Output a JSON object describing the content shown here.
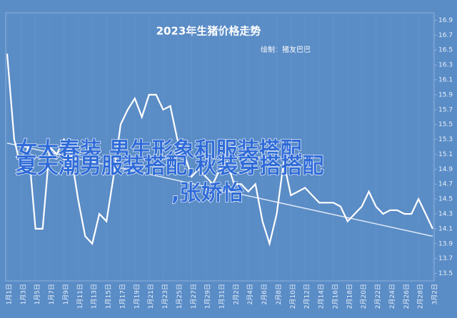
{
  "chart_data": {
    "type": "line",
    "title": "2023年生猪价格走势",
    "subtitle": "绘制：猪友巴巴",
    "categories": [
      "1月1日",
      null,
      "1月3日",
      null,
      "1月5日",
      null,
      "1月7日",
      null,
      "1月9日",
      null,
      "1月11日",
      null,
      "1月13日",
      null,
      "1月15日",
      null,
      "1月17日",
      null,
      "1月19日",
      null,
      "1月21日",
      null,
      "1月23日",
      null,
      "1月25日",
      null,
      "1月27日",
      null,
      "1月29日",
      null,
      "1月31日",
      null,
      "2月2日",
      null,
      "2月4日",
      null,
      "2月6日",
      null,
      "2月8日",
      null,
      "2月10日",
      null,
      "2月12日",
      null,
      "2月14日",
      null,
      "2月16日",
      null,
      "2月18日",
      null,
      "2月20日",
      null,
      "2月22日",
      null,
      "2月24日",
      null,
      "2月26日",
      null,
      "2月28日",
      null,
      "3月2日"
    ],
    "series": [
      {
        "color": "#ffffff",
        "values": [
          16.45,
          15.3,
          14.9,
          15.2,
          14.1,
          14.1,
          15.2,
          15.1,
          15.3,
          15.1,
          14.5,
          14.0,
          13.9,
          14.3,
          14.2,
          14.8,
          15.5,
          15.7,
          15.85,
          15.6,
          15.9,
          15.9,
          15.7,
          15.75,
          15.3,
          15.1,
          14.8,
          14.9,
          14.8,
          14.7,
          14.9,
          15.0,
          14.7,
          14.7,
          14.6,
          14.7,
          14.2,
          13.9,
          14.3,
          15.0,
          14.55,
          14.6,
          14.65,
          14.55,
          14.45,
          14.45,
          14.45,
          14.4,
          14.2,
          14.3,
          14.4,
          14.6,
          14.4,
          14.3,
          14.35,
          14.35,
          14.3,
          14.3,
          14.5,
          14.3,
          14.1
        ]
      }
    ],
    "trendline": [
      15.25,
      14.0
    ],
    "ylim": [
      13.4,
      17.0
    ],
    "yticks": [
      13.5,
      13.7,
      13.9,
      14.1,
      14.3,
      14.5,
      14.7,
      14.9,
      15.1,
      15.3,
      15.5,
      15.7,
      15.9,
      16.1,
      16.3,
      16.5,
      16.7,
      16.9
    ],
    "overlay_text": [
      "女大春装 男生形象和服装搭配",
      "夏天潮男服装搭配,秋装穿搭搭配",
      ",张娇怡"
    ]
  }
}
